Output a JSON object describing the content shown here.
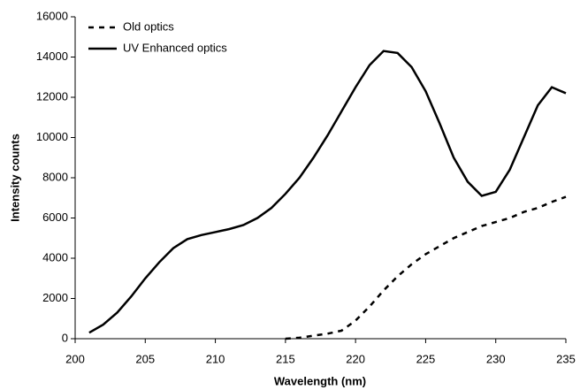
{
  "chart_data": {
    "type": "line",
    "x_label": "Wavelength (nm)",
    "y_label": "Intensity counts",
    "x": [
      201,
      202,
      203,
      204,
      205,
      206,
      207,
      208,
      209,
      210,
      211,
      212,
      213,
      214,
      215,
      216,
      217,
      218,
      219,
      220,
      221,
      222,
      223,
      224,
      225,
      226,
      227,
      228,
      229,
      230,
      231,
      232,
      233,
      234,
      235
    ],
    "series": [
      {
        "name": "Old optics",
        "color": "#000000",
        "dash": true,
        "values": [
          null,
          null,
          null,
          null,
          null,
          null,
          null,
          null,
          null,
          null,
          null,
          null,
          null,
          null,
          0,
          50,
          150,
          250,
          400,
          900,
          1600,
          2400,
          3100,
          3700,
          4200,
          4600,
          5000,
          5300,
          5600,
          5800,
          6000,
          6300,
          6500,
          6800,
          7050
        ]
      },
      {
        "name": "UV Enhanced optics",
        "color": "#000000",
        "dash": false,
        "values": [
          300,
          700,
          1300,
          2100,
          3000,
          3800,
          4500,
          4950,
          5150,
          5300,
          5450,
          5650,
          6000,
          6500,
          7200,
          8000,
          9000,
          10100,
          11300,
          12500,
          13600,
          14300,
          14200,
          13500,
          12300,
          10700,
          9000,
          7800,
          7100,
          7300,
          8400,
          10000,
          11600,
          12500,
          12200
        ]
      }
    ],
    "xlim": [
      200,
      235
    ],
    "xticks": [
      200,
      205,
      210,
      215,
      220,
      225,
      230,
      235
    ],
    "ylim": [
      0,
      16000
    ],
    "yticks": [
      0,
      2000,
      4000,
      6000,
      8000,
      10000,
      12000,
      14000,
      16000
    ],
    "grid": false,
    "legend": "upper left"
  }
}
